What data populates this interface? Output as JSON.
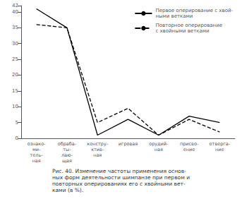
{
  "chart_data": {
    "type": "line",
    "title": "Рис. 40. Изменение частоты применения основ-\nных форм деятельности шимпанзе при первом и\nповторных оперированиях его с хвойными вет-\nками (в %).",
    "categories": [
      "ознако-\nми-\nтель-\nная",
      "обраба-\nты-\nлаю-\nщая",
      "констру-\nктив-\nная",
      "игровая",
      "орудий-\nная",
      "присво-\nение",
      "отверга-\nние"
    ],
    "series": [
      {
        "name": "Первое оперирование с хвой-\nными ветками",
        "color": "#000000",
        "line_style": "solid",
        "values": [
          41,
          35,
          1,
          6,
          1,
          7,
          5
        ]
      },
      {
        "name": "Повторное оперирование\nс хвойными ветками",
        "color": "#000000",
        "line_style": "dashed",
        "values": [
          36,
          35,
          5,
          9.5,
          1,
          6,
          2
        ]
      }
    ],
    "ylim": [
      0,
      42
    ],
    "yticks": [
      0,
      5,
      10,
      15,
      20,
      25,
      30,
      35,
      40
    ],
    "grid": false,
    "legend": "upper right"
  }
}
